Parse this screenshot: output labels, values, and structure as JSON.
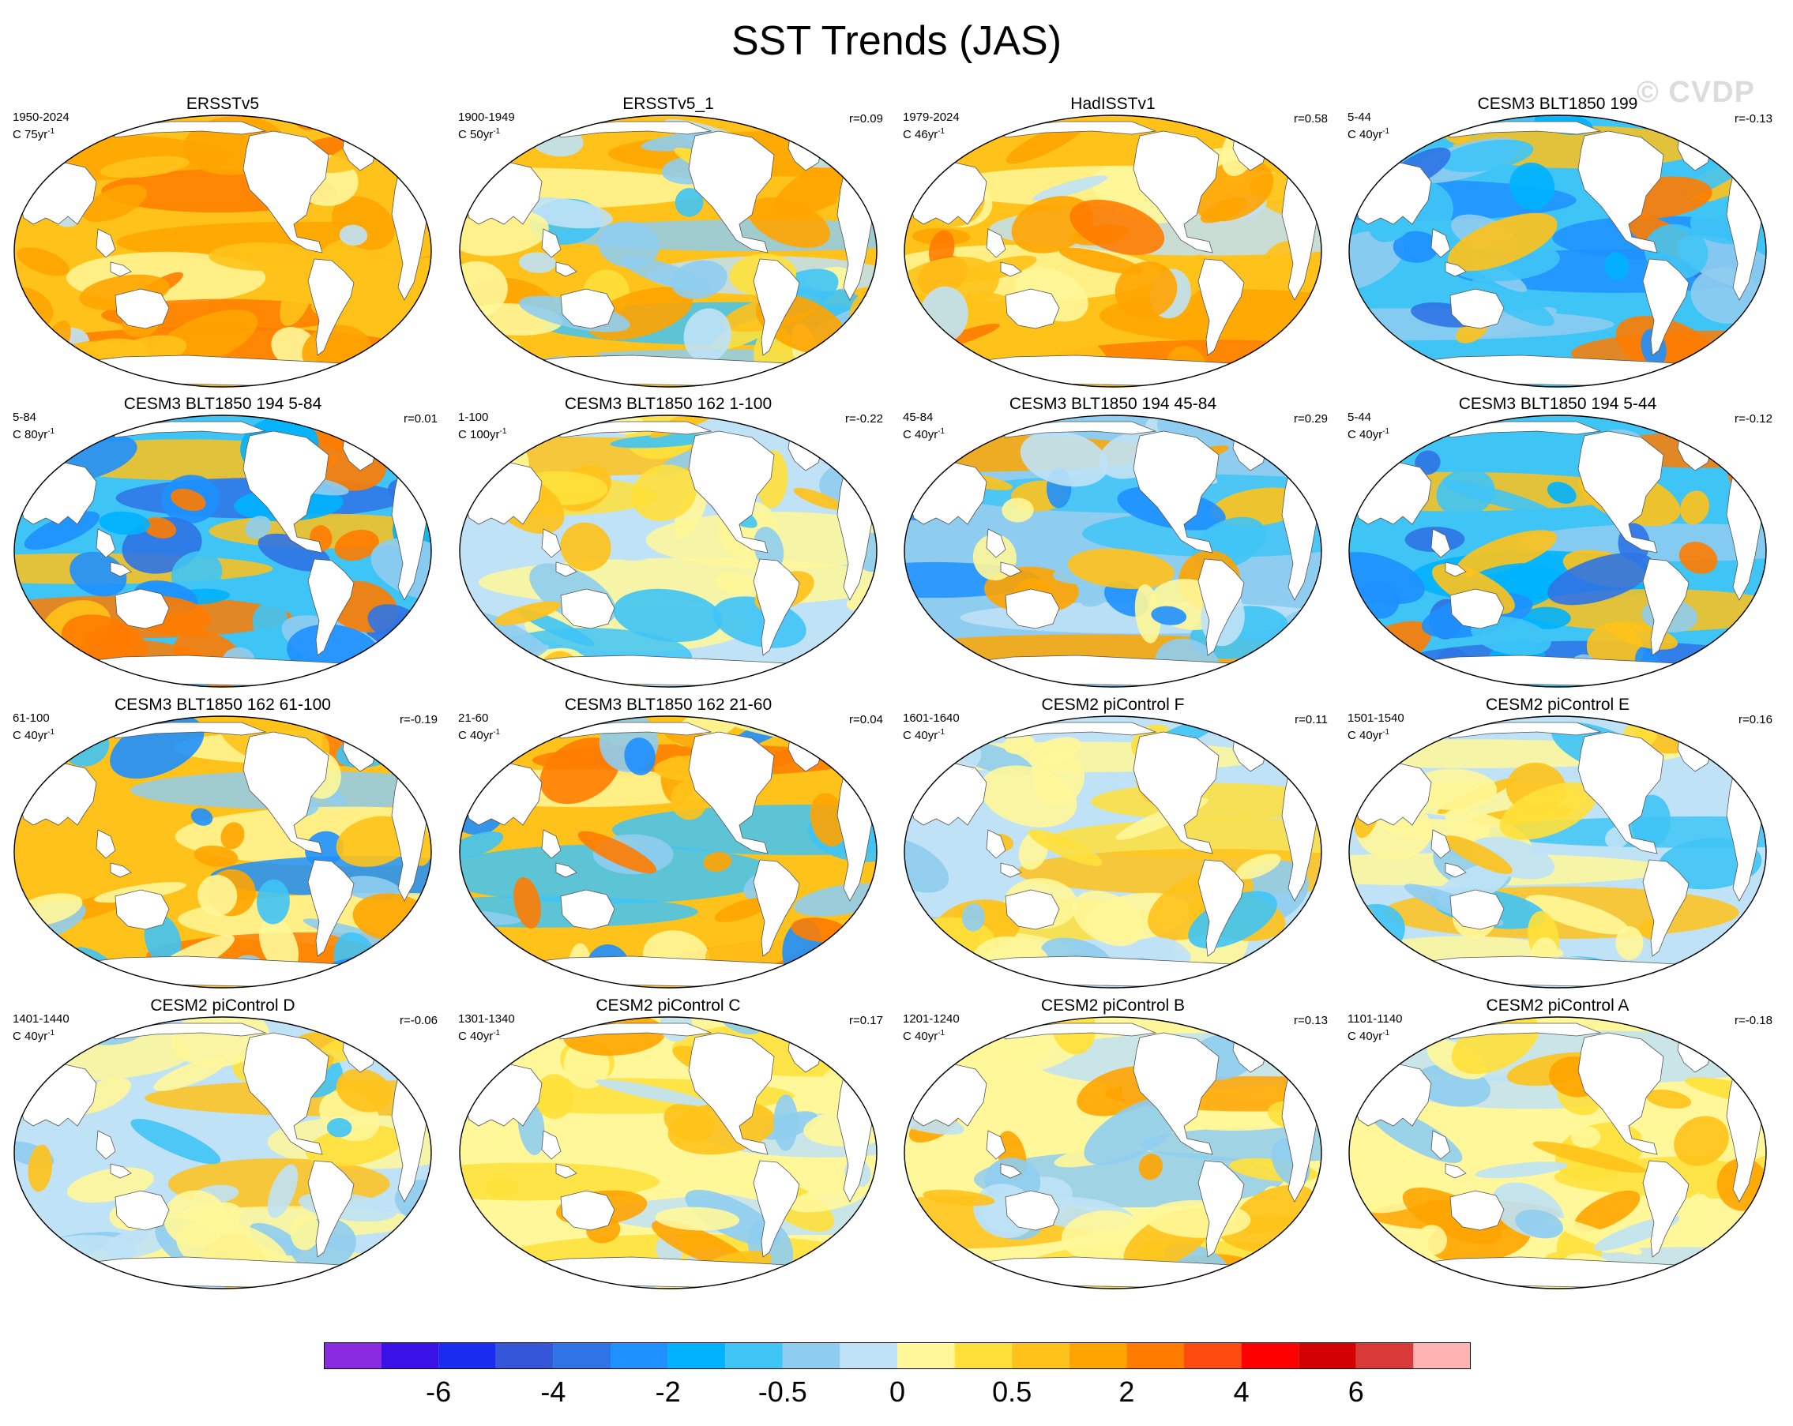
{
  "title": "SST Trends (JAS)",
  "watermark": "© CVDP",
  "units_prefix": "C ",
  "units_suffix": "yr",
  "units_exp": "-1",
  "palette": {
    "ocean_base": "#fff799",
    "land": "#ffffff",
    "outline": "#000000"
  },
  "panels": [
    {
      "title": "ERSSTv5",
      "period": "1950-2024",
      "units_value": "75",
      "r": "",
      "style": "warm"
    },
    {
      "title": "ERSSTv5_1",
      "period": "1900-1949",
      "units_value": "50",
      "r": "r=0.09",
      "style": "warmmix"
    },
    {
      "title": "HadISSTv1",
      "period": "1979-2024",
      "units_value": "46",
      "r": "r=0.58",
      "style": "warm"
    },
    {
      "title": "CESM3 BLT1850 199",
      "period": "5-44",
      "units_value": "40",
      "r": "r=-0.13",
      "style": "cool"
    },
    {
      "title": "CESM3 BLT1850 194 5-84",
      "period": "5-84",
      "units_value": "80",
      "r": "r=0.01",
      "style": "cool"
    },
    {
      "title": "CESM3 BLT1850 162 1-100",
      "period": "1-100",
      "units_value": "100",
      "r": "r=-0.22",
      "style": "mixlight"
    },
    {
      "title": "CESM3 BLT1850 194 45-84",
      "period": "45-84",
      "units_value": "40",
      "r": "r=0.29",
      "style": "coolmix"
    },
    {
      "title": "CESM3 BLT1850 194 5-44",
      "period": "5-44",
      "units_value": "40",
      "r": "r=-0.12",
      "style": "cool"
    },
    {
      "title": "CESM3 BLT1850 162 61-100",
      "period": "61-100",
      "units_value": "40",
      "r": "r=-0.19",
      "style": "mix"
    },
    {
      "title": "CESM3 BLT1850 162 21-60",
      "period": "21-60",
      "units_value": "40",
      "r": "r=0.04",
      "style": "mix"
    },
    {
      "title": "CESM2 piControl F",
      "period": "1601-1640",
      "units_value": "40",
      "r": "r=0.11",
      "style": "mixlight"
    },
    {
      "title": "CESM2 piControl E",
      "period": "1501-1540",
      "units_value": "40",
      "r": "r=0.16",
      "style": "mixlight"
    },
    {
      "title": "CESM2 piControl D",
      "period": "1401-1440",
      "units_value": "40",
      "r": "r=-0.06",
      "style": "mixlight"
    },
    {
      "title": "CESM2 piControl C",
      "period": "1301-1340",
      "units_value": "40",
      "r": "r=0.17",
      "style": "warmlight"
    },
    {
      "title": "CESM2 piControl B",
      "period": "1201-1240",
      "units_value": "40",
      "r": "r=0.13",
      "style": "warmlight"
    },
    {
      "title": "CESM2 piControl A",
      "period": "1101-1140",
      "units_value": "40",
      "r": "r=-0.18",
      "style": "warmlight"
    }
  ],
  "colorbar": {
    "colors": [
      "#8a2be2",
      "#3a12e8",
      "#1a2cf0",
      "#3556d8",
      "#2f74e6",
      "#1e90ff",
      "#00b2ff",
      "#3fc4f6",
      "#8fcdf0",
      "#bfe2f6",
      "#fff799",
      "#ffe03a",
      "#ffc21a",
      "#ffa400",
      "#ff7c00",
      "#ff4a10",
      "#ff0000",
      "#d20000",
      "#d83a3a",
      "#ffb2b2"
    ],
    "labels": [
      "-6",
      "-4",
      "-2",
      "-0.5",
      "0",
      "0.5",
      "2",
      "4",
      "6"
    ]
  }
}
